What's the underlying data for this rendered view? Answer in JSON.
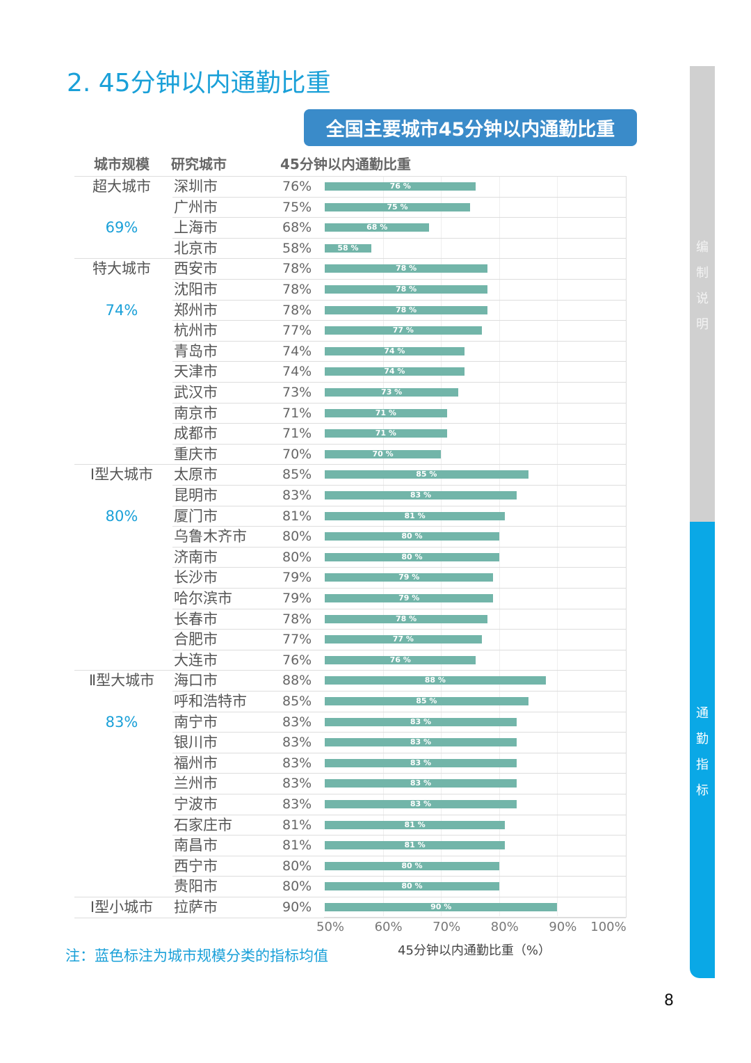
{
  "page": {
    "title": "2. 45分钟以内通勤比重",
    "banner": "全国主要城市45分钟以内通勤比重",
    "note": "注：蓝色标注为城市规模分类的指标均值",
    "page_number": "8",
    "side_top": [
      "编",
      "制",
      "说",
      "明"
    ],
    "side_bottom": [
      "通",
      "勤",
      "指",
      "标"
    ]
  },
  "headers": {
    "size": "城市规模",
    "city": "研究城市",
    "value": "45分钟以内通勤比重"
  },
  "chart_data": {
    "type": "bar",
    "orientation": "horizontal",
    "xlabel": "45分钟以内通勤比重（%）",
    "xlim": [
      50,
      100
    ],
    "ticks": [
      "50%",
      "60%",
      "70%",
      "80%",
      "90%",
      "100%"
    ],
    "tick_values": [
      50,
      60,
      70,
      80,
      90,
      100
    ],
    "bar_color": "#72b5a9",
    "groups": [
      {
        "name": "超大城市",
        "avg": "69%",
        "cities": [
          "深圳市",
          "广州市",
          "上海市",
          "北京市"
        ],
        "values": [
          76,
          75,
          68,
          58
        ]
      },
      {
        "name": "特大城市",
        "avg": "74%",
        "cities": [
          "西安市",
          "沈阳市",
          "郑州市",
          "杭州市",
          "青岛市",
          "天津市",
          "武汉市",
          "南京市",
          "成都市",
          "重庆市"
        ],
        "values": [
          78,
          78,
          78,
          77,
          74,
          74,
          73,
          71,
          71,
          70
        ]
      },
      {
        "name": "Ⅰ型大城市",
        "avg": "80%",
        "cities": [
          "太原市",
          "昆明市",
          "厦门市",
          "乌鲁木齐市",
          "济南市",
          "长沙市",
          "哈尔滨市",
          "长春市",
          "合肥市",
          "大连市"
        ],
        "values": [
          85,
          83,
          81,
          80,
          80,
          79,
          79,
          78,
          77,
          76
        ]
      },
      {
        "name": "Ⅱ型大城市",
        "avg": "83%",
        "cities": [
          "海口市",
          "呼和浩特市",
          "南宁市",
          "银川市",
          "福州市",
          "兰州市",
          "宁波市",
          "石家庄市",
          "南昌市",
          "西宁市",
          "贵阳市"
        ],
        "values": [
          88,
          85,
          83,
          83,
          83,
          83,
          83,
          81,
          81,
          80,
          80
        ]
      },
      {
        "name": "Ⅰ型小城市",
        "avg": "",
        "cities": [
          "拉萨市"
        ],
        "values": [
          90
        ]
      }
    ]
  }
}
